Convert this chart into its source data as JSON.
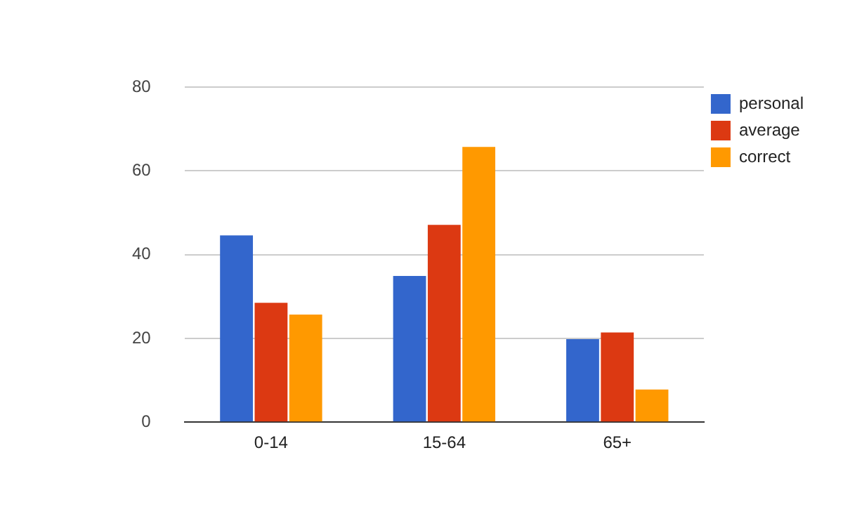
{
  "chart_data": {
    "type": "bar",
    "categories": [
      "0-14",
      "15-64",
      "65+"
    ],
    "series": [
      {
        "name": "personal",
        "color": "#3366cc",
        "values": [
          44.6,
          34.9,
          19.8
        ]
      },
      {
        "name": "average",
        "color": "#dc3912",
        "values": [
          28.5,
          47.1,
          21.4
        ]
      },
      {
        "name": "correct",
        "color": "#ff9900",
        "values": [
          25.7,
          65.7,
          7.8
        ]
      }
    ],
    "ylim": [
      0,
      80
    ],
    "yticks": [
      0,
      20,
      40,
      60,
      80
    ],
    "grid": "y",
    "legend": "top right"
  }
}
